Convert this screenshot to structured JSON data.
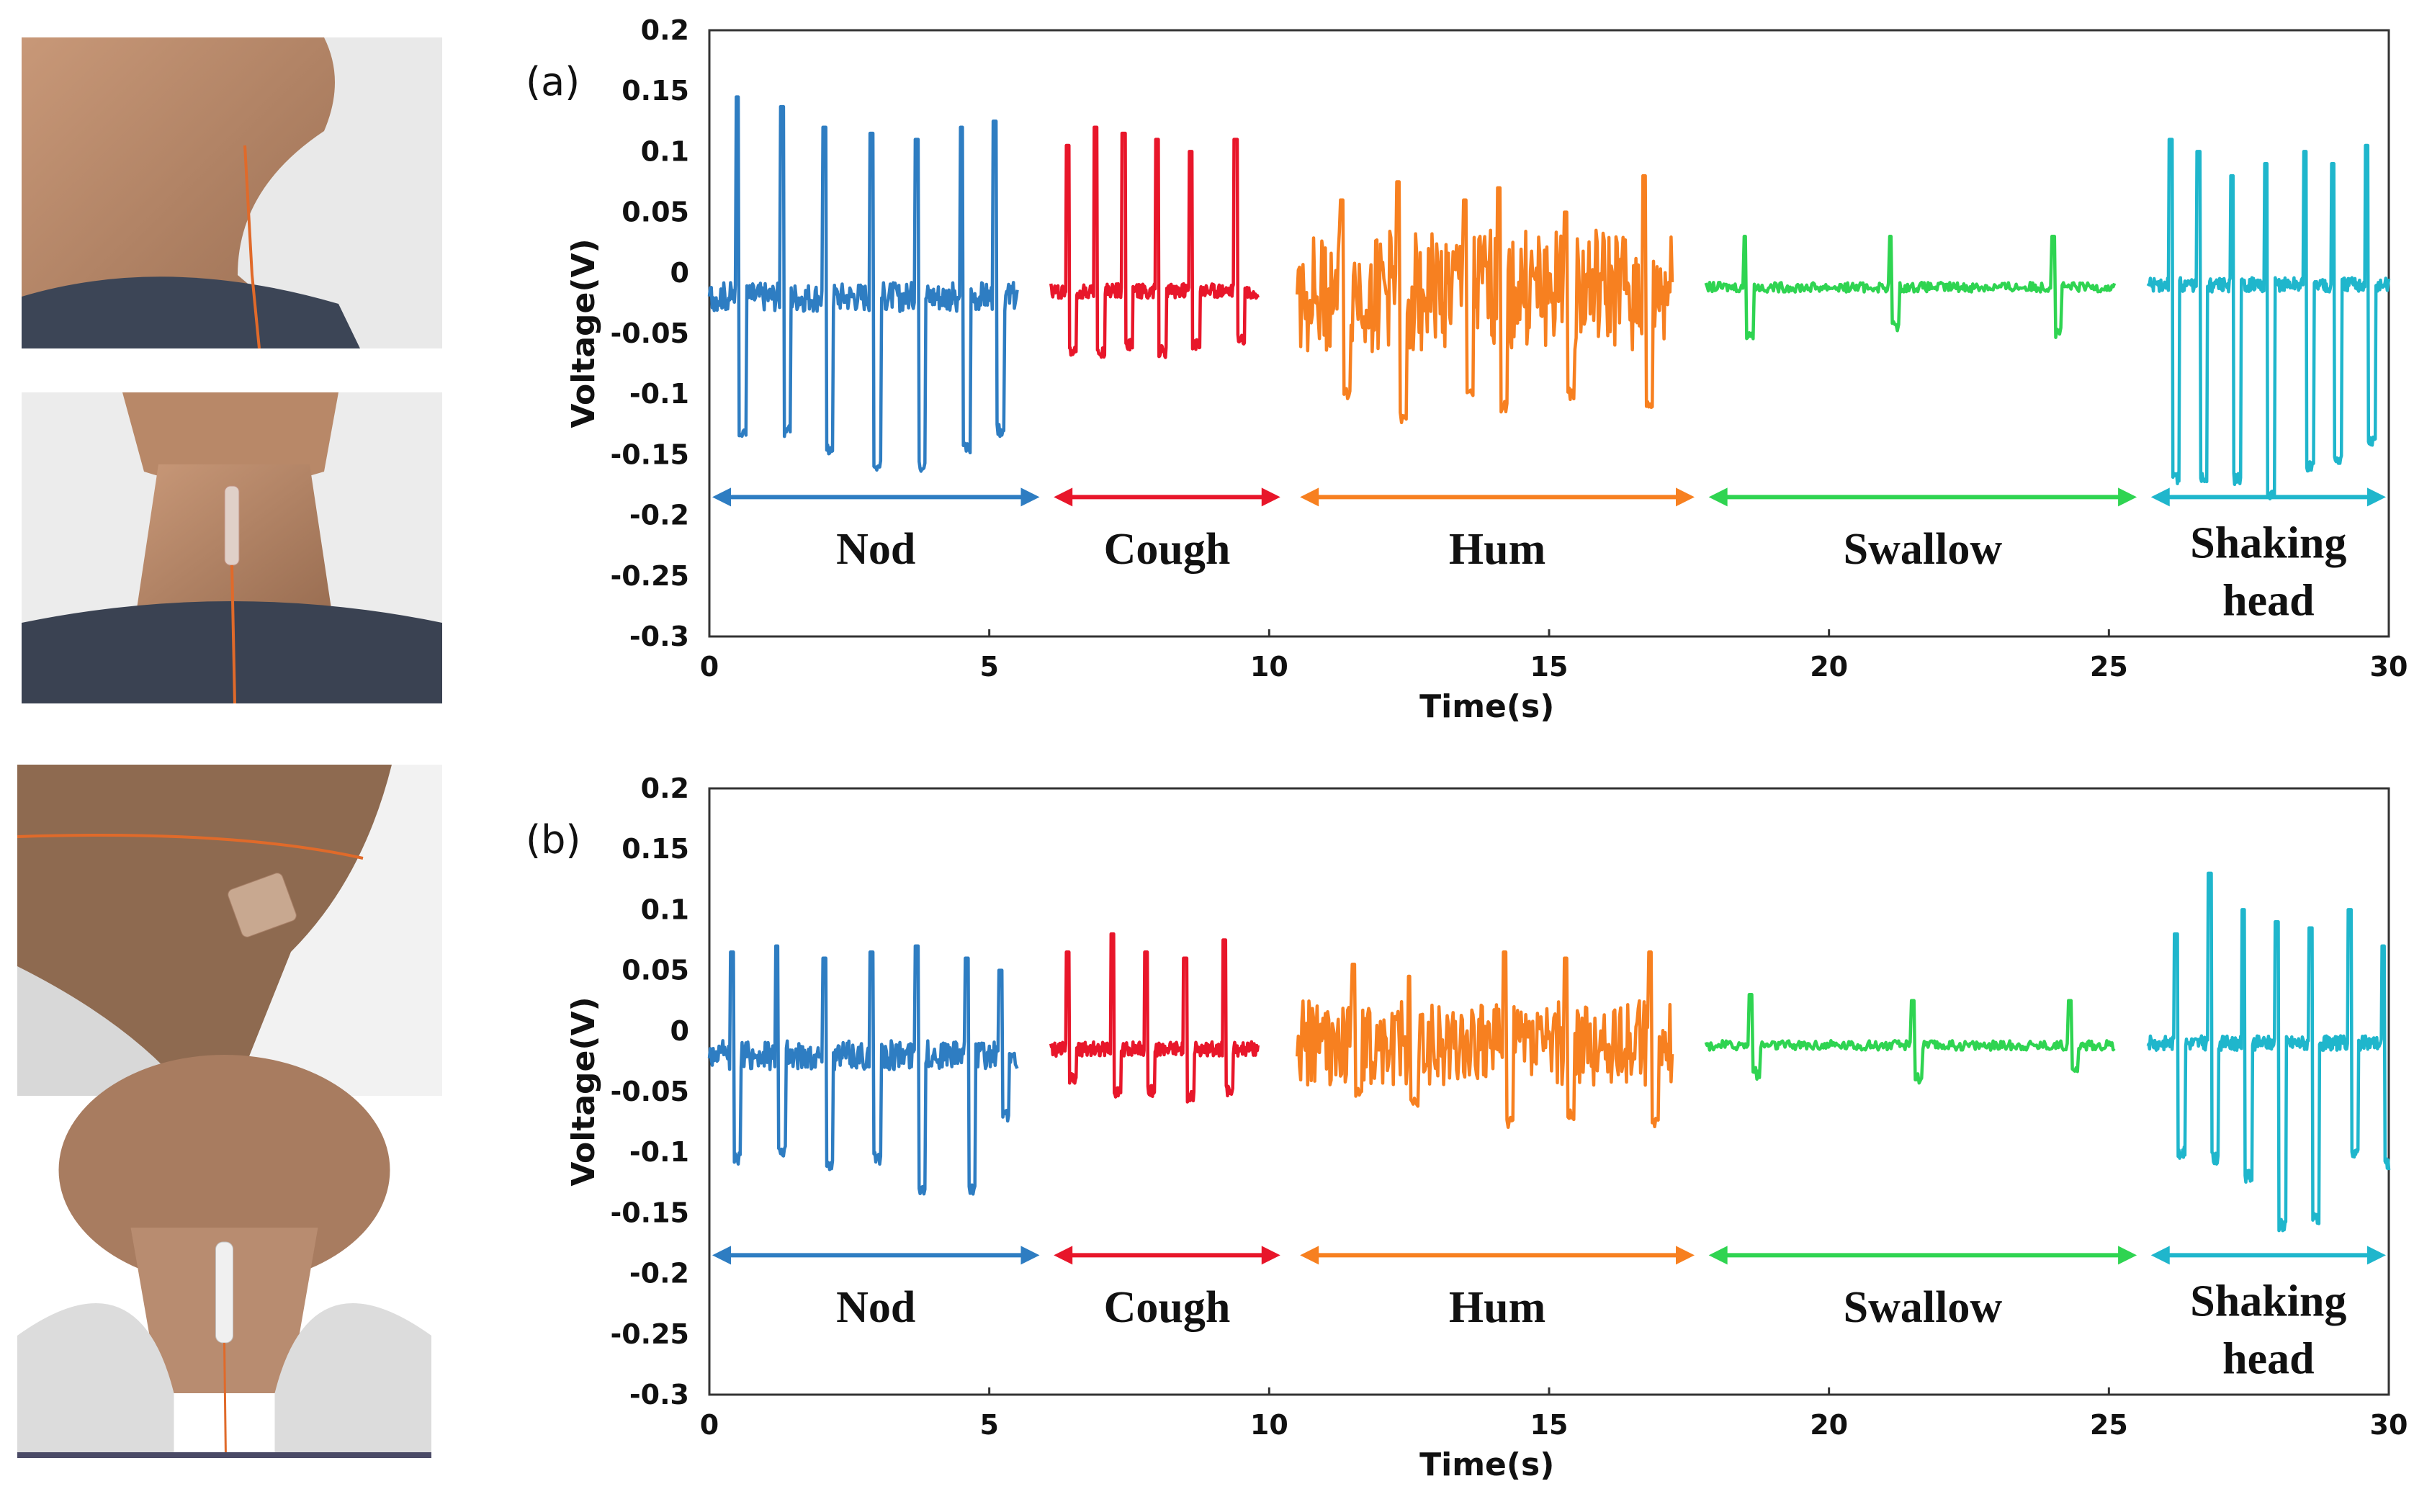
{
  "photos": [
    {
      "description": "side view neck with sensor, gray t-shirt"
    },
    {
      "description": "front view neck with sensor strip, gray t-shirt"
    },
    {
      "description": "tilted neck with sensor patch, light jacket"
    },
    {
      "description": "front view neck with sensor, light jacket"
    }
  ],
  "colors": {
    "nod": "#2e7dc2",
    "cough": "#e8162a",
    "hum": "#f78020",
    "swallow": "#2fd451",
    "shaking": "#1fb6cc",
    "axis": "#333333"
  },
  "chart_data": [
    {
      "type": "line",
      "panel_label": "(a)",
      "xlabel": "Time(s)",
      "ylabel": "Voltage(V)",
      "xlim": [
        0,
        30
      ],
      "ylim": [
        -0.3,
        0.2
      ],
      "xticks": [
        "0",
        "5",
        "10",
        "15",
        "20",
        "25",
        "30"
      ],
      "yticks": [
        "0.2",
        "0.15",
        "0.1",
        "0.05",
        "0",
        "-0.05",
        "-0.1",
        "-0.15",
        "-0.2",
        "-0.25",
        "-0.3"
      ],
      "segments": [
        {
          "label": "Nod",
          "label2": "",
          "color_key": "nod",
          "range": [
            0,
            5.5
          ],
          "baseline": -0.02,
          "noise": 0.012,
          "peaks": [
            [
              0.5,
              0.145,
              -0.13
            ],
            [
              1.3,
              0.137,
              -0.13
            ],
            [
              2.05,
              0.12,
              -0.145
            ],
            [
              2.9,
              0.115,
              -0.16
            ],
            [
              3.7,
              0.11,
              -0.16
            ],
            [
              4.5,
              0.12,
              -0.145
            ],
            [
              5.1,
              0.125,
              -0.13
            ]
          ]
        },
        {
          "label": "Cough",
          "label2": "",
          "color_key": "cough",
          "range": [
            6.1,
            9.8
          ],
          "baseline": -0.015,
          "noise": 0.006,
          "peaks": [
            [
              6.4,
              0.105,
              -0.065
            ],
            [
              6.9,
              0.12,
              -0.065
            ],
            [
              7.4,
              0.115,
              -0.06
            ],
            [
              8.0,
              0.11,
              -0.065
            ],
            [
              8.6,
              0.1,
              -0.06
            ],
            [
              9.4,
              0.11,
              -0.055
            ]
          ]
        },
        {
          "label": "Hum",
          "label2": "",
          "color_key": "hum",
          "range": [
            10.5,
            17.2
          ],
          "baseline": -0.015,
          "noise": 0.05,
          "peaks": [
            [
              11.3,
              0.06,
              -0.1
            ],
            [
              12.3,
              0.075,
              -0.12
            ],
            [
              13.5,
              0.06,
              -0.1
            ],
            [
              14.1,
              0.07,
              -0.11
            ],
            [
              15.3,
              0.05,
              -0.1
            ],
            [
              16.7,
              0.08,
              -0.11
            ]
          ]
        },
        {
          "label": "Swallow",
          "label2": "",
          "color_key": "swallow",
          "range": [
            17.8,
            25.1
          ],
          "baseline": -0.012,
          "noise": 0.004,
          "peaks": [
            [
              18.5,
              0.03,
              -0.05
            ],
            [
              21.1,
              0.03,
              -0.045
            ],
            [
              24.0,
              0.03,
              -0.05
            ]
          ]
        },
        {
          "label": "Shaking",
          "label2": "head",
          "color_key": "shaking",
          "range": [
            25.7,
            30
          ],
          "baseline": -0.01,
          "noise": 0.006,
          "peaks": [
            [
              26.1,
              0.11,
              -0.17
            ],
            [
              26.6,
              0.1,
              -0.17
            ],
            [
              27.2,
              0.08,
              -0.17
            ],
            [
              27.8,
              0.09,
              -0.185
            ],
            [
              28.5,
              0.1,
              -0.16
            ],
            [
              29.0,
              0.09,
              -0.155
            ],
            [
              29.6,
              0.105,
              -0.14
            ]
          ]
        }
      ]
    },
    {
      "type": "line",
      "panel_label": "(b)",
      "xlabel": "Time(s)",
      "ylabel": "Voltage(V)",
      "xlim": [
        0,
        30
      ],
      "ylim": [
        -0.3,
        0.2
      ],
      "xticks": [
        "0",
        "5",
        "10",
        "15",
        "20",
        "25",
        "30"
      ],
      "yticks": [
        "0.2",
        "0.15",
        "0.1",
        "0.05",
        "0",
        "-0.05",
        "-0.1",
        "-0.15",
        "-0.2",
        "-0.25",
        "-0.3"
      ],
      "segments": [
        {
          "label": "Nod",
          "label2": "",
          "color_key": "nod",
          "range": [
            0,
            5.5
          ],
          "baseline": -0.02,
          "noise": 0.012,
          "peaks": [
            [
              0.4,
              0.065,
              -0.105
            ],
            [
              1.2,
              0.07,
              -0.1
            ],
            [
              2.05,
              0.06,
              -0.11
            ],
            [
              2.9,
              0.065,
              -0.105
            ],
            [
              3.7,
              0.07,
              -0.13
            ],
            [
              4.6,
              0.06,
              -0.13
            ],
            [
              5.2,
              0.05,
              -0.07
            ]
          ]
        },
        {
          "label": "Cough",
          "label2": "",
          "color_key": "cough",
          "range": [
            6.1,
            9.8
          ],
          "baseline": -0.015,
          "noise": 0.006,
          "peaks": [
            [
              6.4,
              0.065,
              -0.04
            ],
            [
              7.2,
              0.08,
              -0.05
            ],
            [
              7.8,
              0.065,
              -0.05
            ],
            [
              8.5,
              0.06,
              -0.055
            ],
            [
              9.2,
              0.075,
              -0.05
            ]
          ]
        },
        {
          "label": "Hum",
          "label2": "",
          "color_key": "hum",
          "range": [
            10.5,
            17.2
          ],
          "baseline": -0.01,
          "noise": 0.035,
          "peaks": [
            [
              11.5,
              0.055,
              -0.05
            ],
            [
              12.5,
              0.045,
              -0.06
            ],
            [
              14.2,
              0.065,
              -0.075
            ],
            [
              15.3,
              0.06,
              -0.07
            ],
            [
              16.8,
              0.065,
              -0.075
            ]
          ]
        },
        {
          "label": "Swallow",
          "label2": "",
          "color_key": "swallow",
          "range": [
            17.8,
            25.1
          ],
          "baseline": -0.012,
          "noise": 0.004,
          "peaks": [
            [
              18.6,
              0.03,
              -0.035
            ],
            [
              21.5,
              0.025,
              -0.04
            ],
            [
              24.3,
              0.025,
              -0.035
            ]
          ]
        },
        {
          "label": "Shaking",
          "label2": "head",
          "color_key": "shaking",
          "range": [
            25.7,
            30
          ],
          "baseline": -0.01,
          "noise": 0.006,
          "peaks": [
            [
              26.2,
              0.08,
              -0.1
            ],
            [
              26.8,
              0.13,
              -0.105
            ],
            [
              27.4,
              0.1,
              -0.12
            ],
            [
              28.0,
              0.09,
              -0.16
            ],
            [
              28.6,
              0.085,
              -0.155
            ],
            [
              29.3,
              0.1,
              -0.1
            ],
            [
              29.9,
              0.07,
              -0.11
            ]
          ]
        }
      ]
    }
  ]
}
